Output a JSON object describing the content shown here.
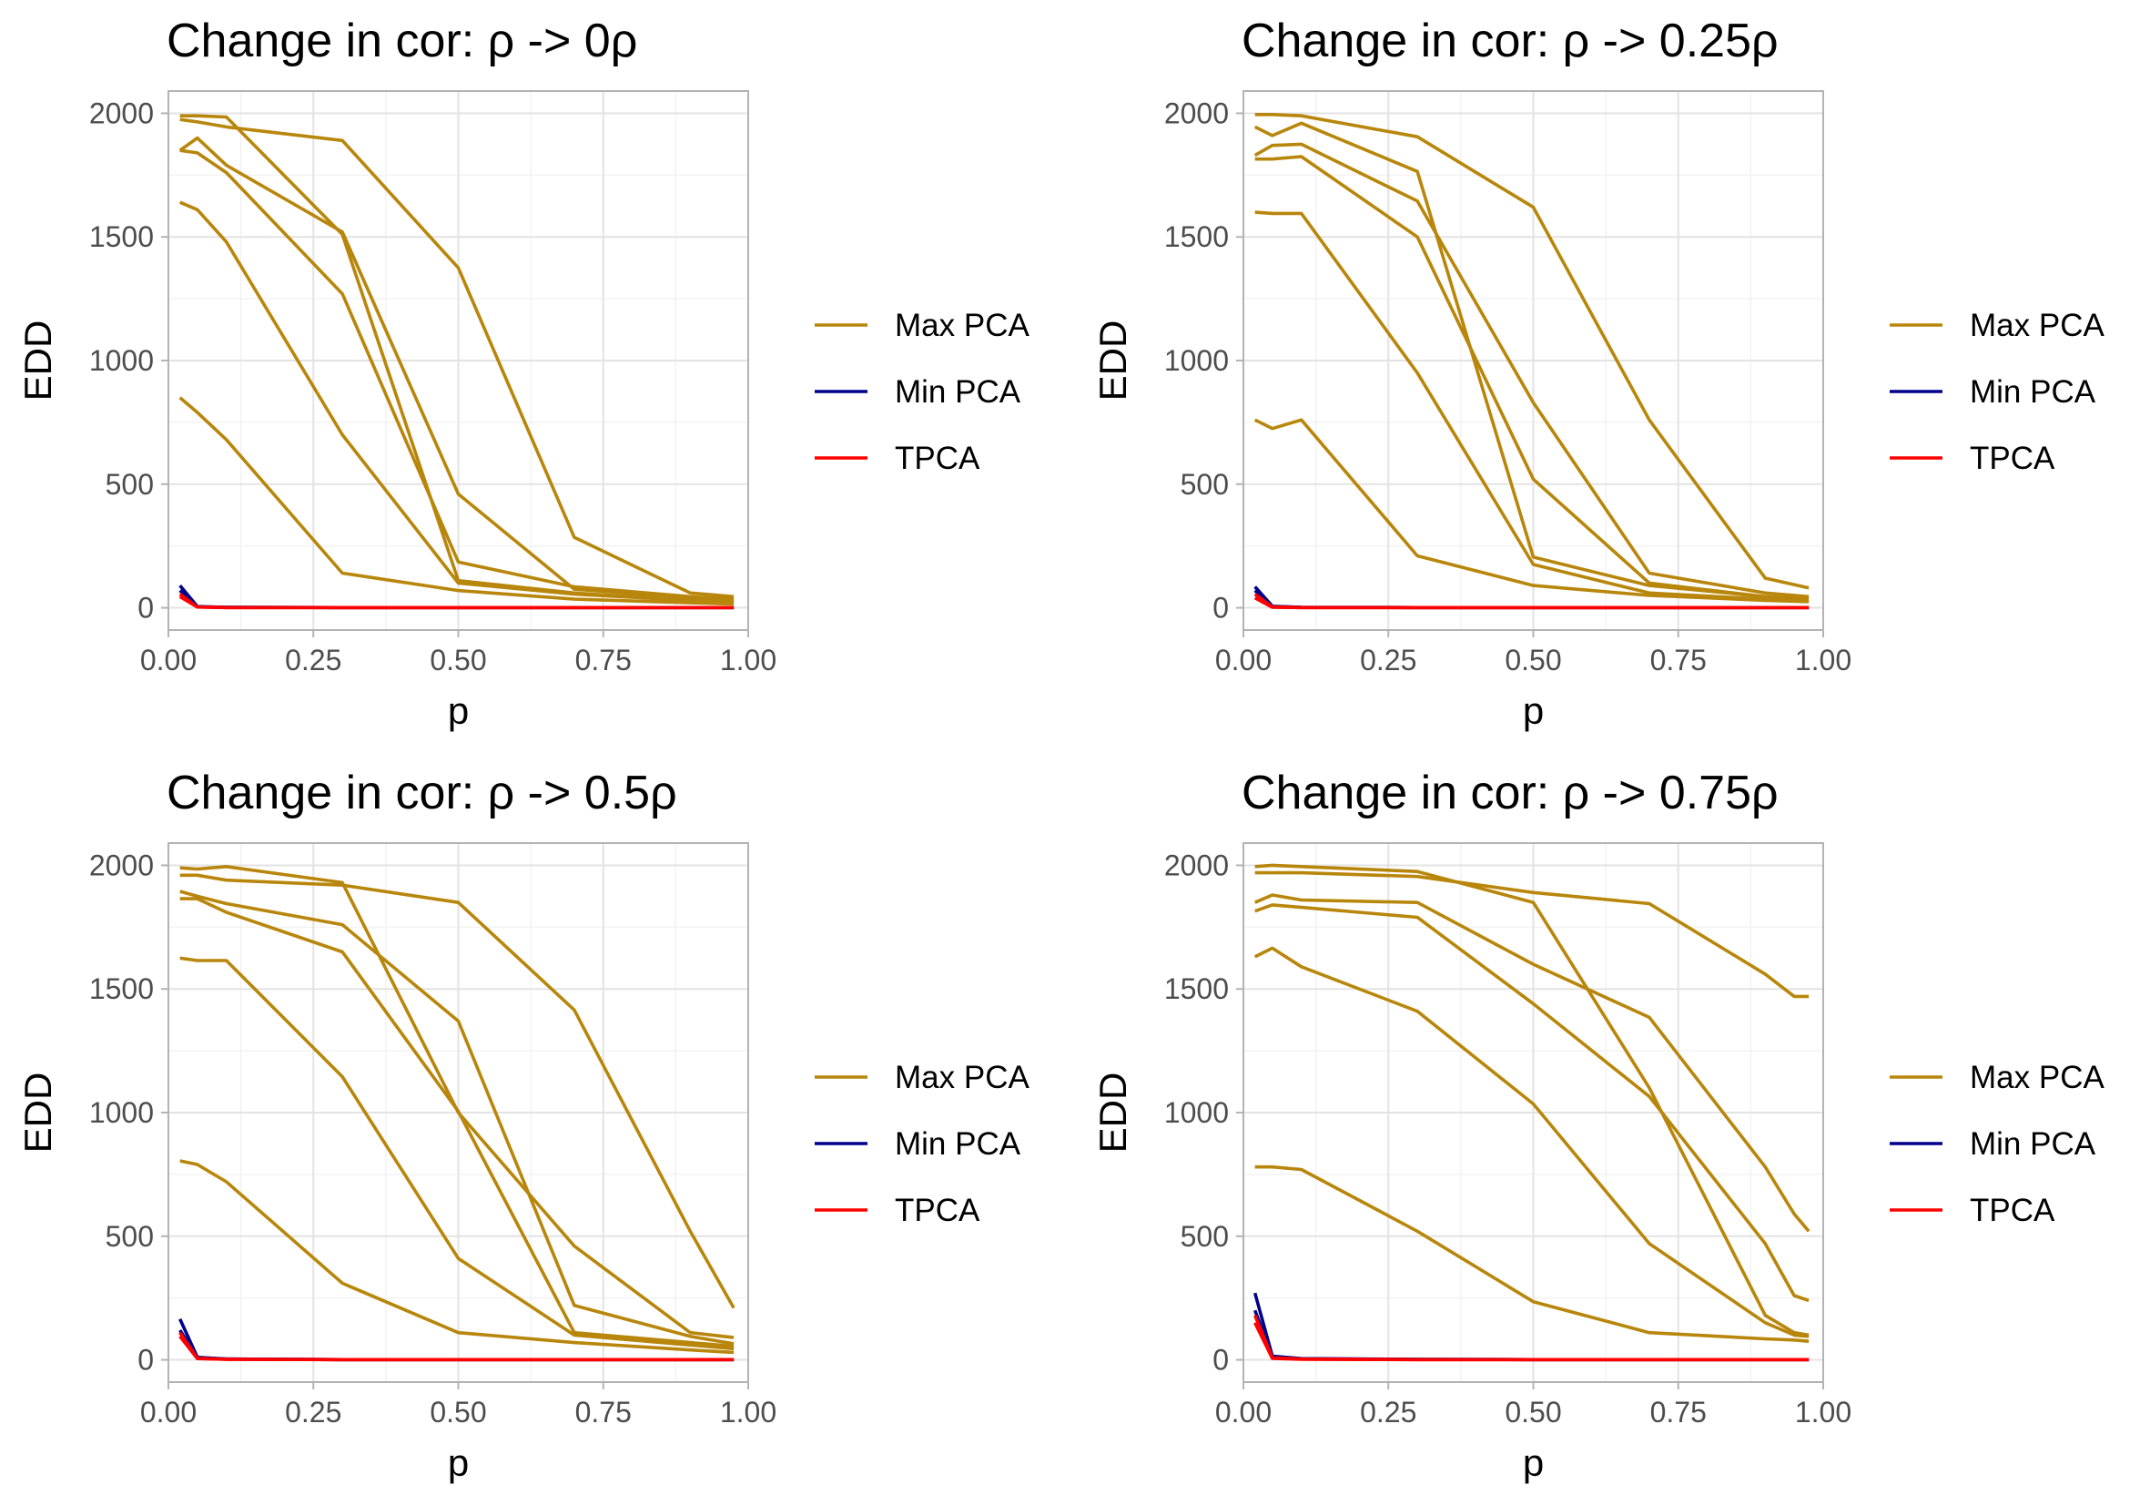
{
  "chart_data": [
    {
      "type": "line",
      "title": "Change in cor: ρ -> 0ρ",
      "xlabel": "p",
      "ylabel": "EDD",
      "xlim": [
        0,
        1
      ],
      "ylim": [
        -90,
        2090
      ],
      "xticks": [
        "0.00",
        "0.25",
        "0.50",
        "0.75",
        "1.00"
      ],
      "yticks": [
        "0",
        "500",
        "1000",
        "1500",
        "2000"
      ],
      "grid": true,
      "legend": "right",
      "legend_entries": [
        "Max PCA",
        "Min PCA",
        "TPCA"
      ],
      "colors": {
        "Max PCA": "#b8860b",
        "Min PCA": "#00008b",
        "TPCA": "#ff0000"
      },
      "x": [
        0.02,
        0.05,
        0.1,
        0.3,
        0.5,
        0.7,
        0.9,
        0.975
      ],
      "series": [
        {
          "group": "Max PCA",
          "values": [
            1990,
            1990,
            1985,
            1510,
            110,
            60,
            30,
            25
          ]
        },
        {
          "group": "Max PCA",
          "values": [
            1975,
            1965,
            1945,
            1890,
            1375,
            285,
            60,
            45
          ]
        },
        {
          "group": "Max PCA",
          "values": [
            1850,
            1900,
            1790,
            1520,
            460,
            75,
            40,
            30
          ]
        },
        {
          "group": "Max PCA",
          "values": [
            1850,
            1840,
            1760,
            1270,
            185,
            85,
            45,
            35
          ]
        },
        {
          "group": "Max PCA",
          "values": [
            1640,
            1610,
            1480,
            700,
            100,
            55,
            30,
            25
          ]
        },
        {
          "group": "Max PCA",
          "values": [
            850,
            790,
            680,
            140,
            70,
            35,
            20,
            15
          ]
        },
        {
          "group": "Min PCA",
          "values": [
            90,
            5,
            2,
            1,
            1,
            1,
            1,
            1
          ]
        },
        {
          "group": "Min PCA",
          "values": [
            70,
            4,
            2,
            1,
            1,
            1,
            1,
            1
          ]
        },
        {
          "group": "TPCA",
          "values": [
            55,
            3,
            1,
            1,
            1,
            1,
            1,
            1
          ]
        },
        {
          "group": "TPCA",
          "values": [
            45,
            3,
            1,
            1,
            1,
            1,
            1,
            1
          ]
        }
      ]
    },
    {
      "type": "line",
      "title": "Change in cor: ρ -> 0.25ρ",
      "xlabel": "p",
      "ylabel": "EDD",
      "xlim": [
        0,
        1
      ],
      "ylim": [
        -90,
        2090
      ],
      "xticks": [
        "0.00",
        "0.25",
        "0.50",
        "0.75",
        "1.00"
      ],
      "yticks": [
        "0",
        "500",
        "1000",
        "1500",
        "2000"
      ],
      "grid": true,
      "legend": "right",
      "legend_entries": [
        "Max PCA",
        "Min PCA",
        "TPCA"
      ],
      "colors": {
        "Max PCA": "#b8860b",
        "Min PCA": "#00008b",
        "TPCA": "#ff0000"
      },
      "x": [
        0.02,
        0.05,
        0.1,
        0.3,
        0.5,
        0.7,
        0.9,
        0.975
      ],
      "series": [
        {
          "group": "Max PCA",
          "values": [
            1995,
            1995,
            1990,
            1905,
            1620,
            760,
            120,
            80
          ]
        },
        {
          "group": "Max PCA",
          "values": [
            1945,
            1910,
            1960,
            1765,
            205,
            90,
            45,
            35
          ]
        },
        {
          "group": "Max PCA",
          "values": [
            1830,
            1870,
            1875,
            1645,
            830,
            140,
            60,
            45
          ]
        },
        {
          "group": "Max PCA",
          "values": [
            1815,
            1815,
            1825,
            1500,
            520,
            100,
            45,
            35
          ]
        },
        {
          "group": "Max PCA",
          "values": [
            1600,
            1595,
            1595,
            950,
            175,
            60,
            35,
            25
          ]
        },
        {
          "group": "Max PCA",
          "values": [
            760,
            725,
            760,
            210,
            90,
            50,
            30,
            25
          ]
        },
        {
          "group": "Min PCA",
          "values": [
            85,
            6,
            2,
            1,
            1,
            1,
            1,
            1
          ]
        },
        {
          "group": "Min PCA",
          "values": [
            70,
            5,
            2,
            1,
            1,
            1,
            1,
            1
          ]
        },
        {
          "group": "TPCA",
          "values": [
            55,
            3,
            1,
            1,
            1,
            1,
            1,
            1
          ]
        },
        {
          "group": "TPCA",
          "values": [
            40,
            2,
            1,
            1,
            1,
            1,
            1,
            1
          ]
        }
      ]
    },
    {
      "type": "line",
      "title": "Change in cor: ρ -> 0.5ρ",
      "xlabel": "p",
      "ylabel": "EDD",
      "xlim": [
        0,
        1
      ],
      "ylim": [
        -90,
        2090
      ],
      "xticks": [
        "0.00",
        "0.25",
        "0.50",
        "0.75",
        "1.00"
      ],
      "yticks": [
        "0",
        "500",
        "1000",
        "1500",
        "2000"
      ],
      "grid": true,
      "legend": "right",
      "legend_entries": [
        "Max PCA",
        "Min PCA",
        "TPCA"
      ],
      "colors": {
        "Max PCA": "#b8860b",
        "Min PCA": "#00008b",
        "TPCA": "#ff0000"
      },
      "x": [
        0.02,
        0.05,
        0.1,
        0.3,
        0.5,
        0.7,
        0.9,
        0.975
      ],
      "series": [
        {
          "group": "Max PCA",
          "values": [
            1990,
            1985,
            1995,
            1930,
            1000,
            460,
            110,
            90
          ]
        },
        {
          "group": "Max PCA",
          "values": [
            1960,
            1960,
            1940,
            1920,
            1850,
            1415,
            520,
            210
          ]
        },
        {
          "group": "Max PCA",
          "values": [
            1895,
            1875,
            1845,
            1760,
            1370,
            220,
            95,
            65
          ]
        },
        {
          "group": "Max PCA",
          "values": [
            1865,
            1865,
            1810,
            1650,
            1005,
            110,
            70,
            55
          ]
        },
        {
          "group": "Max PCA",
          "values": [
            1625,
            1615,
            1615,
            1145,
            410,
            100,
            60,
            45
          ]
        },
        {
          "group": "Max PCA",
          "values": [
            805,
            790,
            720,
            310,
            110,
            70,
            40,
            30
          ]
        },
        {
          "group": "Min PCA",
          "values": [
            165,
            10,
            3,
            1,
            1,
            1,
            1,
            1
          ]
        },
        {
          "group": "Min PCA",
          "values": [
            120,
            8,
            3,
            1,
            1,
            1,
            1,
            1
          ]
        },
        {
          "group": "TPCA",
          "values": [
            110,
            6,
            2,
            1,
            1,
            1,
            1,
            1
          ]
        },
        {
          "group": "TPCA",
          "values": [
            95,
            5,
            2,
            1,
            1,
            1,
            1,
            1
          ]
        }
      ]
    },
    {
      "type": "line",
      "title": "Change in cor: ρ -> 0.75ρ",
      "xlabel": "p",
      "ylabel": "EDD",
      "xlim": [
        0,
        1
      ],
      "ylim": [
        -90,
        2090
      ],
      "xticks": [
        "0.00",
        "0.25",
        "0.50",
        "0.75",
        "1.00"
      ],
      "yticks": [
        "0",
        "500",
        "1000",
        "1500",
        "2000"
      ],
      "grid": true,
      "legend": "right",
      "legend_entries": [
        "Max PCA",
        "Min PCA",
        "TPCA"
      ],
      "colors": {
        "Max PCA": "#b8860b",
        "Min PCA": "#00008b",
        "TPCA": "#ff0000"
      },
      "x": [
        0.02,
        0.05,
        0.1,
        0.3,
        0.5,
        0.7,
        0.9,
        0.95,
        0.975
      ],
      "series": [
        {
          "group": "Max PCA",
          "values": [
            1995,
            2000,
            1995,
            1975,
            1850,
            1100,
            180,
            110,
            100
          ]
        },
        {
          "group": "Max PCA",
          "values": [
            1970,
            1970,
            1970,
            1955,
            1890,
            1845,
            1560,
            1470,
            1470
          ]
        },
        {
          "group": "Max PCA",
          "values": [
            1850,
            1880,
            1860,
            1850,
            1600,
            1385,
            780,
            590,
            520
          ]
        },
        {
          "group": "Max PCA",
          "values": [
            1815,
            1840,
            1830,
            1790,
            1440,
            1065,
            470,
            260,
            240
          ]
        },
        {
          "group": "Max PCA",
          "values": [
            1630,
            1665,
            1590,
            1410,
            1035,
            470,
            150,
            100,
            95
          ]
        },
        {
          "group": "Max PCA",
          "values": [
            780,
            780,
            770,
            520,
            235,
            110,
            85,
            80,
            75
          ]
        },
        {
          "group": "Min PCA",
          "values": [
            270,
            15,
            5,
            2,
            1,
            1,
            1,
            1,
            1
          ]
        },
        {
          "group": "Min PCA",
          "values": [
            200,
            10,
            4,
            2,
            1,
            1,
            1,
            1,
            1
          ]
        },
        {
          "group": "TPCA",
          "values": [
            180,
            8,
            3,
            1,
            1,
            1,
            1,
            1,
            1
          ]
        },
        {
          "group": "TPCA",
          "values": [
            150,
            6,
            2,
            1,
            1,
            1,
            1,
            1,
            1
          ]
        }
      ]
    }
  ]
}
